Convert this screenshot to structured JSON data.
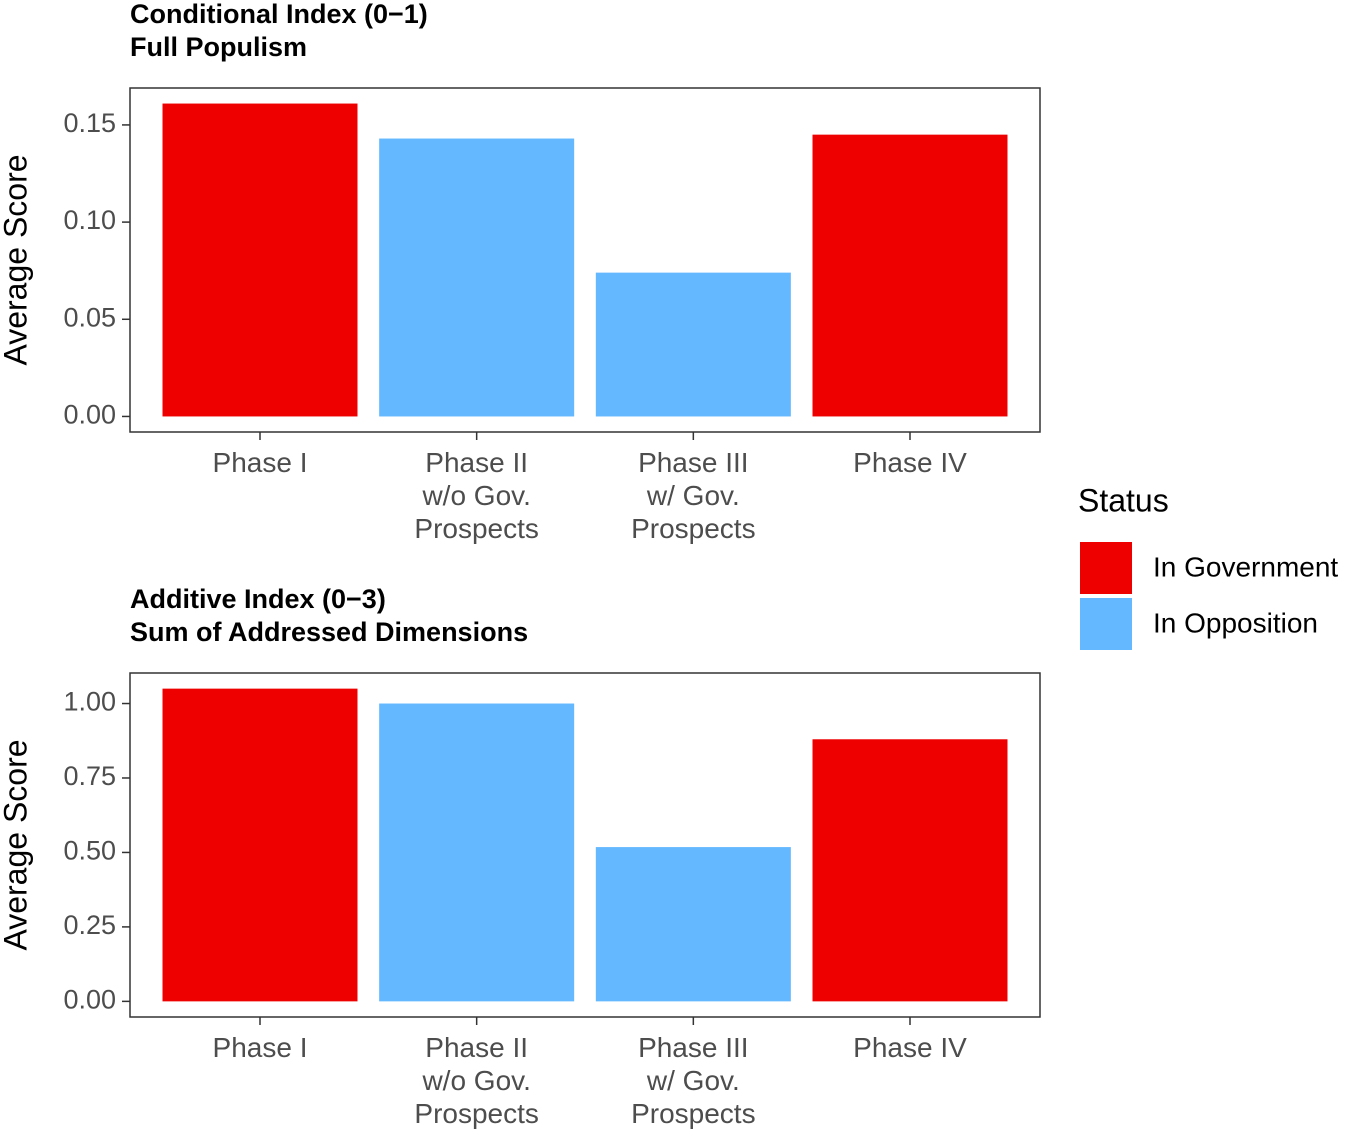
{
  "chart_data": [
    {
      "type": "bar",
      "title": "Conditional Index (0−1)",
      "subtitle": "Full Populism",
      "y_label": "Average Score",
      "categories": [
        "Phase I",
        "Phase II\nw/o Gov.\nProspects",
        "Phase III\nw/ Gov.\nProspects",
        "Phase IV"
      ],
      "series": [
        {
          "name": "In Government",
          "color": "#ee0000",
          "values": [
            0.161,
            null,
            null,
            0.145
          ]
        },
        {
          "name": "In Opposition",
          "color": "#63b8ff",
          "values": [
            null,
            0.143,
            0.074,
            null
          ]
        }
      ],
      "ylim": [
        -0.008,
        0.169
      ],
      "yticks": [
        {
          "value": 0,
          "label": "0.00"
        },
        {
          "value": 0.05,
          "label": "0.05"
        },
        {
          "value": 0.1,
          "label": "0.10"
        },
        {
          "value": 0.15,
          "label": "0.15"
        }
      ]
    },
    {
      "type": "bar",
      "title": "Additive Index (0−3)",
      "subtitle": "Sum of Addressed Dimensions",
      "y_label": "Average Score",
      "categories": [
        "Phase I",
        "Phase II\nw/o Gov.\nProspects",
        "Phase III\nw/ Gov.\nProspects",
        "Phase IV"
      ],
      "series": [
        {
          "name": "In Government",
          "color": "#ee0000",
          "values": [
            1.05,
            null,
            null,
            0.88
          ]
        },
        {
          "name": "In Opposition",
          "color": "#63b8ff",
          "values": [
            null,
            1.0,
            0.518,
            null
          ]
        }
      ],
      "ylim": [
        -0.0525,
        1.1025
      ],
      "yticks": [
        {
          "value": 0,
          "label": "0.00"
        },
        {
          "value": 0.25,
          "label": "0.25"
        },
        {
          "value": 0.5,
          "label": "0.50"
        },
        {
          "value": 0.75,
          "label": "0.75"
        },
        {
          "value": 1,
          "label": "1.00"
        }
      ]
    }
  ],
  "legend": {
    "title": "Status"
  }
}
